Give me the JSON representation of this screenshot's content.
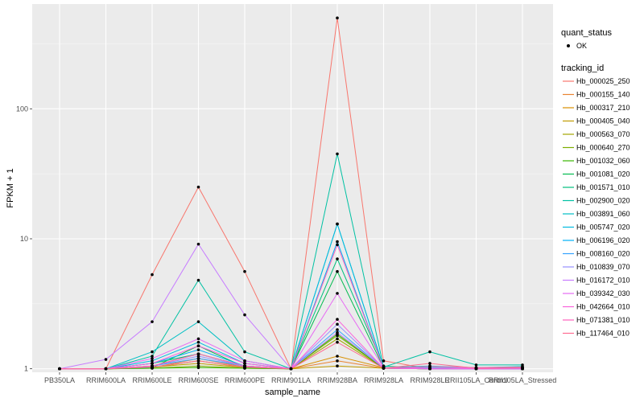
{
  "chart_data": {
    "type": "line",
    "title": "",
    "xlabel": "sample_name",
    "ylabel": "FPKM + 1",
    "y_scale": "log10",
    "ylim": [
      0.94,
      640
    ],
    "yticks": [
      1,
      10,
      100
    ],
    "ytick_labels": [
      "1",
      "10",
      "100"
    ],
    "categories": [
      "PB350LA",
      "RRIM600LA",
      "RRIM600LE",
      "RRIM600SE",
      "RRIM600PE",
      "RRIM901LA",
      "RRIM928BA",
      "RRIM928LA",
      "RRIM928LE",
      "RRII105LA_Control",
      "RRII105LA_Stressed"
    ],
    "x_tick_labels": [
      "PB350LA",
      "RRIM600LA",
      "RRIM600LE",
      "RRIM600SE",
      "RRIM600PE",
      "RRIM901LA",
      "RRIM928BA",
      "RRIM928LA",
      "RRIM928LE",
      "RRII105LA_Control",
      "RRII105LA_Stressed"
    ],
    "legend_quant_title": "quant_status",
    "legend_quant_label": "OK",
    "legend_title": "tracking_id",
    "series": [
      {
        "name": "Hb_000025_250",
        "color": "#F8766D",
        "values": [
          1,
          1,
          5.3,
          25,
          5.6,
          1,
          500,
          1.15,
          1,
          1,
          1
        ]
      },
      {
        "name": "Hb_000155_140",
        "color": "#EA8331",
        "values": [
          1,
          1,
          1.02,
          1.2,
          1.03,
          1,
          1.15,
          1.01,
          1,
          1,
          1
        ]
      },
      {
        "name": "Hb_000317_210",
        "color": "#D89000",
        "values": [
          1,
          1,
          1.05,
          1.3,
          1.05,
          1,
          1.25,
          1.02,
          1,
          1,
          1
        ]
      },
      {
        "name": "Hb_000405_040",
        "color": "#C09B00",
        "values": [
          1,
          1,
          1.03,
          1.1,
          1.02,
          1,
          1.05,
          1.01,
          1,
          1,
          1
        ]
      },
      {
        "name": "Hb_000563_070",
        "color": "#A3A500",
        "values": [
          1,
          1,
          1.02,
          1.15,
          1.02,
          1,
          1.7,
          1.01,
          1,
          1,
          1
        ]
      },
      {
        "name": "Hb_000640_270",
        "color": "#7CAE00",
        "values": [
          1,
          1,
          1.01,
          1.05,
          1.01,
          1,
          1.8,
          1.01,
          1,
          1,
          1
        ]
      },
      {
        "name": "Hb_001032_060",
        "color": "#39B600",
        "values": [
          1,
          1,
          1.01,
          1.02,
          1.01,
          1,
          1.85,
          1.01,
          1,
          1,
          1
        ]
      },
      {
        "name": "Hb_001081_020",
        "color": "#00BB4E",
        "values": [
          1,
          1,
          1.02,
          1.5,
          1.03,
          1,
          5.6,
          1.02,
          1,
          1,
          1
        ]
      },
      {
        "name": "Hb_001571_010",
        "color": "#00BF7D",
        "values": [
          1,
          1,
          1.1,
          1.3,
          1.05,
          1,
          7.0,
          1.05,
          1,
          1,
          1
        ]
      },
      {
        "name": "Hb_002900_020",
        "color": "#00C1A3",
        "values": [
          1,
          1,
          1.25,
          4.8,
          1.35,
          1,
          45,
          1.03,
          1.35,
          1.07,
          1.07
        ]
      },
      {
        "name": "Hb_003891_060",
        "color": "#00BFC4",
        "values": [
          1,
          1,
          1.35,
          2.3,
          1.15,
          1,
          13,
          1.02,
          1.05,
          1.02,
          1.04
        ]
      },
      {
        "name": "Hb_005747_020",
        "color": "#00BAE0",
        "values": [
          1,
          1,
          1.15,
          1.6,
          1.1,
          1,
          13,
          1.02,
          1.02,
          1.01,
          1.02
        ]
      },
      {
        "name": "Hb_006196_020",
        "color": "#00B0F6",
        "values": [
          1,
          1,
          1.1,
          1.4,
          1.05,
          1,
          9.5,
          1.01,
          1.01,
          1.01,
          1.01
        ]
      },
      {
        "name": "Hb_008160_020",
        "color": "#35A2FF",
        "values": [
          1,
          1,
          1.05,
          1.2,
          1.05,
          1,
          2.0,
          1.01,
          1,
          1,
          1
        ]
      },
      {
        "name": "Hb_010839_070",
        "color": "#9590FF",
        "values": [
          1,
          1,
          1.05,
          1.25,
          1.05,
          1,
          2.2,
          1.01,
          1,
          1,
          1
        ]
      },
      {
        "name": "Hb_016172_010",
        "color": "#C77CFF",
        "values": [
          1,
          1.18,
          2.3,
          9.1,
          2.6,
          1,
          1.9,
          1.02,
          1,
          1,
          1
        ]
      },
      {
        "name": "Hb_039342_030",
        "color": "#E76BF3",
        "values": [
          1,
          1,
          1.2,
          1.7,
          1.15,
          1,
          3.8,
          1.02,
          1.01,
          1.01,
          1.02
        ]
      },
      {
        "name": "Hb_042664_010",
        "color": "#FA62DB",
        "values": [
          1,
          1,
          1.1,
          1.5,
          1.1,
          1,
          2.4,
          1.01,
          1,
          1,
          1
        ]
      },
      {
        "name": "Hb_071381_010",
        "color": "#FF62BC",
        "values": [
          1,
          1,
          1.05,
          1.3,
          1.05,
          1,
          9.0,
          1.01,
          1.04,
          1.02,
          1.03
        ]
      },
      {
        "name": "Hb_117464_010",
        "color": "#FF6C91",
        "values": [
          1,
          1,
          1.03,
          1.15,
          1.03,
          1,
          1.6,
          1.01,
          1.1,
          1.01,
          1.02
        ]
      }
    ]
  }
}
